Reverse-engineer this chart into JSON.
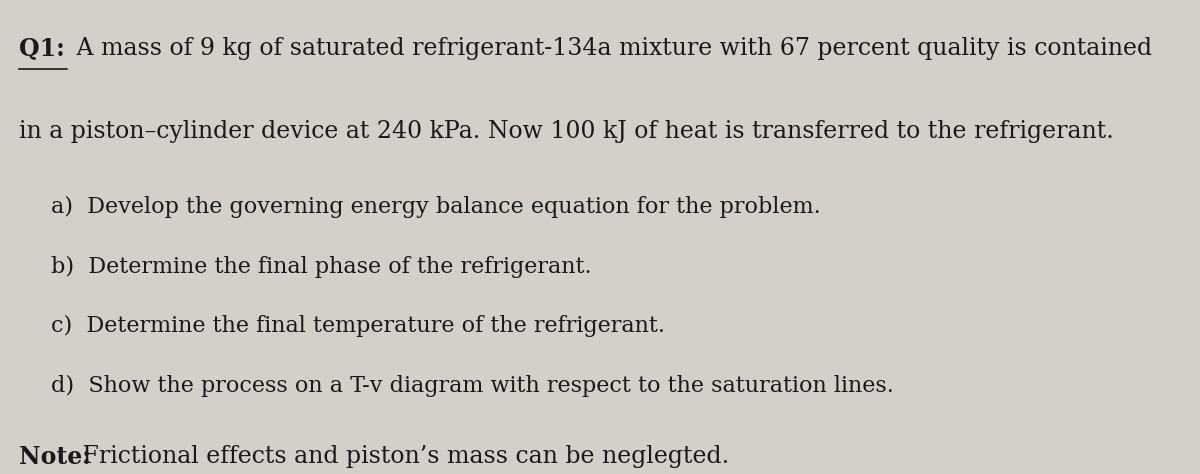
{
  "background_color": "#d4cfc8",
  "title_label": "Q1:",
  "title_text": " A mass of 9 kg of saturated refrigerant-134a mixture with 67 percent quality is contained",
  "line2_text": "in a piston–cylinder device at 240 kPa. Now 100 kJ of heat is transferred to the refrigerant.",
  "items": [
    "a)  Develop the governing energy balance equation for the problem.",
    "b)  Determine the final phase of the refrigerant.",
    "c)  Determine the final temperature of the refrigerant.",
    "d)  Show the process on a T-v diagram with respect to the saturation lines."
  ],
  "note_label": "Note:",
  "note_text": " Frictional effects and piston’s mass can be neglegted.",
  "font_size_main": 17,
  "font_size_items": 16,
  "font_size_note": 17,
  "text_color": "#1a1a1a",
  "figsize": [
    12.0,
    4.74
  ],
  "dpi": 100
}
